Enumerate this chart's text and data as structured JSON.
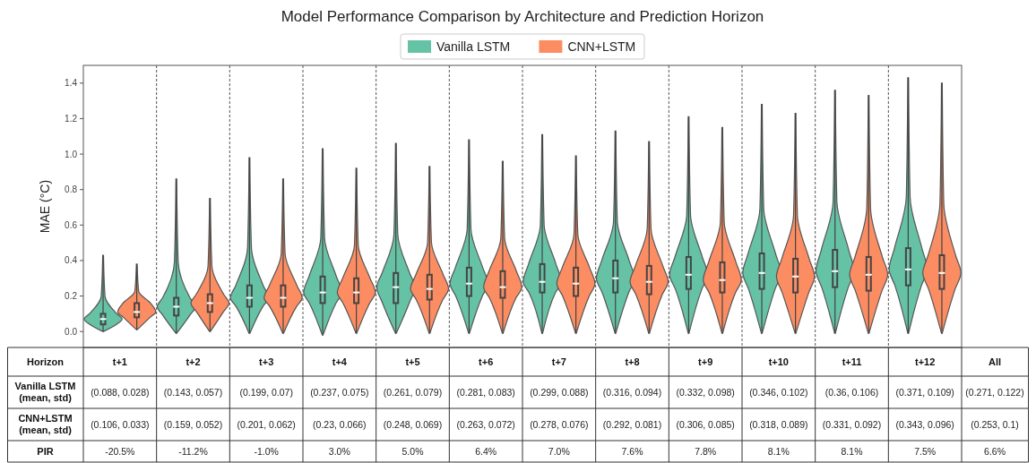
{
  "chart_data": [
    {
      "type": "box",
      "title": "Model Performance Comparison by Architecture and Prediction Horizon",
      "ylabel": "MAE (°C)",
      "categories": [
        "t+1",
        "t+2",
        "t+3",
        "t+4",
        "t+5",
        "t+6",
        "t+7",
        "t+8",
        "t+9",
        "t+10",
        "t+11",
        "t+12"
      ],
      "ylim": [
        -0.09,
        1.5
      ],
      "yticks": [
        {
          "value": 0,
          "label": "0.0"
        },
        0.2,
        0.4,
        0.6,
        0.8,
        {
          "value": 1,
          "label": "1.0"
        },
        1.2,
        1.4
      ],
      "grid": "x",
      "legend": "top",
      "tick_labels": "y",
      "series": [
        {
          "name": "Vanilla LSTM",
          "color": "#66c2a5",
          "boxes": [
            {
              "low": 0.0,
              "q1": 0.04,
              "median": 0.07,
              "q3": 0.1,
              "high": 0.43
            },
            {
              "low": -0.01,
              "q1": 0.09,
              "median": 0.14,
              "q3": 0.19,
              "high": 0.86
            },
            {
              "low": -0.01,
              "q1": 0.14,
              "median": 0.19,
              "q3": 0.26,
              "high": 0.98
            },
            {
              "low": -0.02,
              "q1": 0.16,
              "median": 0.22,
              "q3": 0.31,
              "high": 1.03
            },
            {
              "low": -0.01,
              "q1": 0.16,
              "median": 0.25,
              "q3": 0.33,
              "high": 1.06
            },
            {
              "low": -0.01,
              "q1": 0.2,
              "median": 0.27,
              "q3": 0.36,
              "high": 1.08
            },
            {
              "low": -0.01,
              "q1": 0.22,
              "median": 0.28,
              "q3": 0.38,
              "high": 1.11
            },
            {
              "low": -0.01,
              "q1": 0.22,
              "median": 0.3,
              "q3": 0.4,
              "high": 1.13
            },
            {
              "low": -0.01,
              "q1": 0.24,
              "median": 0.32,
              "q3": 0.42,
              "high": 1.21
            },
            {
              "low": -0.01,
              "q1": 0.24,
              "median": 0.33,
              "q3": 0.44,
              "high": 1.28
            },
            {
              "low": -0.01,
              "q1": 0.25,
              "median": 0.34,
              "q3": 0.46,
              "high": 1.36
            },
            {
              "low": -0.01,
              "q1": 0.26,
              "median": 0.35,
              "q3": 0.47,
              "high": 1.43
            }
          ]
        },
        {
          "name": "CNN+LSTM",
          "color": "#fc8d62",
          "boxes": [
            {
              "low": 0.01,
              "q1": 0.08,
              "median": 0.11,
              "q3": 0.16,
              "high": 0.38
            },
            {
              "low": 0.0,
              "q1": 0.11,
              "median": 0.16,
              "q3": 0.21,
              "high": 0.75
            },
            {
              "low": -0.01,
              "q1": 0.14,
              "median": 0.19,
              "q3": 0.26,
              "high": 0.86
            },
            {
              "low": -0.01,
              "q1": 0.16,
              "median": 0.22,
              "q3": 0.3,
              "high": 0.92
            },
            {
              "low": -0.01,
              "q1": 0.18,
              "median": 0.24,
              "q3": 0.32,
              "high": 0.93
            },
            {
              "low": -0.01,
              "q1": 0.19,
              "median": 0.25,
              "q3": 0.34,
              "high": 0.96
            },
            {
              "low": -0.01,
              "q1": 0.2,
              "median": 0.27,
              "q3": 0.36,
              "high": 0.99
            },
            {
              "low": -0.01,
              "q1": 0.21,
              "median": 0.28,
              "q3": 0.37,
              "high": 1.07
            },
            {
              "low": -0.01,
              "q1": 0.22,
              "median": 0.29,
              "q3": 0.39,
              "high": 1.15
            },
            {
              "low": -0.01,
              "q1": 0.22,
              "median": 0.31,
              "q3": 0.41,
              "high": 1.23
            },
            {
              "low": -0.01,
              "q1": 0.23,
              "median": 0.32,
              "q3": 0.42,
              "high": 1.33
            },
            {
              "low": -0.01,
              "q1": 0.24,
              "median": 0.33,
              "q3": 0.43,
              "high": 1.4
            }
          ]
        }
      ]
    },
    {
      "type": "other",
      "y_categories": [
        "Horizon",
        "Vanilla LSTM (mean, std)",
        "CNN+LSTM (mean, std)",
        "PIR"
      ],
      "categories": [
        "All"
      ],
      "cell_labels": [
        [
          "(0.088, 0.028)",
          "(0.143, 0.057)",
          "(0.199, 0.07)",
          "(0.237, 0.075)",
          "(0.261, 0.079)",
          "(0.281, 0.083)",
          "(0.299, 0.088)",
          "(0.316, 0.094)",
          "(0.332, 0.098)",
          "(0.346, 0.102)",
          "(0.36, 0.106)",
          "(0.371, 0.109)",
          "(0.271, 0.122)"
        ],
        [
          "(0.106, 0.033)",
          "(0.159, 0.052)",
          "(0.201, 0.062)",
          "(0.23, 0.066)",
          "(0.248, 0.069)",
          "(0.263, 0.072)",
          "(0.278, 0.076)",
          "(0.292, 0.081)",
          "(0.306, 0.085)",
          "(0.318, 0.089)",
          "(0.331, 0.092)",
          "(0.343, 0.096)",
          "(0.253, 0.1)"
        ],
        [
          "-20.5%",
          "-11.2%",
          "-1.0%",
          "3.0%",
          "5.0%",
          "6.4%",
          "7.0%",
          "7.6%",
          "7.8%",
          "8.1%",
          "8.1%",
          "7.5%",
          "6.6%"
        ]
      ]
    }
  ]
}
